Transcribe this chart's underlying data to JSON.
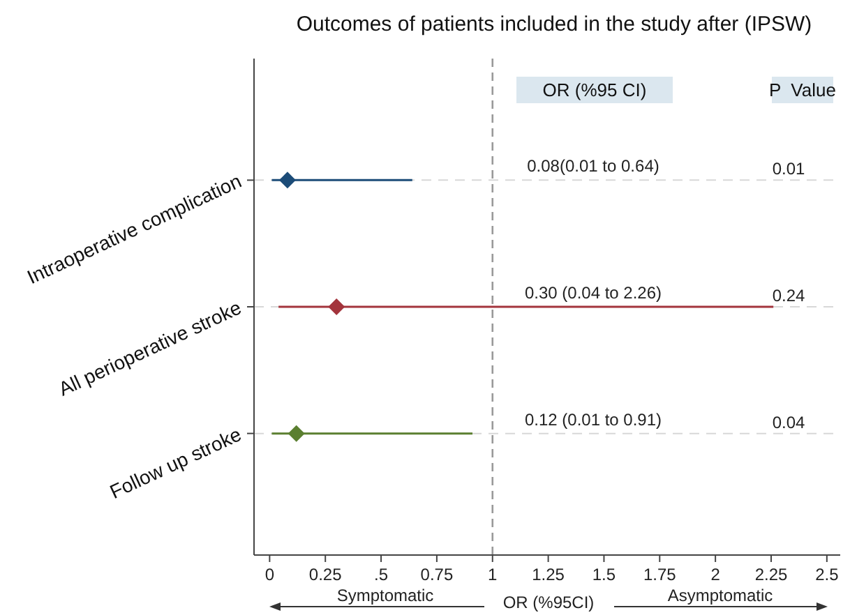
{
  "chart_data": {
    "type": "scatter",
    "orientation": "horizontal",
    "title": "Outcomes of patients included in the study after (IPSW)",
    "xlabel": "OR (%95CI)",
    "categories": [
      "Intraoperative complication",
      "All perioperative stroke",
      "Follow up stroke"
    ],
    "series": [
      {
        "colors": [
          "#1c4c78",
          "#a3343c",
          "#5b7f30"
        ],
        "values": [
          0.08,
          0.3,
          0.12
        ],
        "errors": [
          [
            0.01,
            0.64
          ],
          [
            0.04,
            2.26
          ],
          [
            0.01,
            0.91
          ]
        ]
      }
    ],
    "marker": "diamond",
    "grid": "y",
    "xlim": [
      -0.07,
      2.56
    ],
    "xticks": [
      0,
      0.25,
      {
        "value": 0.5,
        "label": ".5"
      },
      0.75,
      1,
      1.25,
      1.5,
      1.75,
      2,
      2.25,
      2.5
    ],
    "ref_lines": [
      {
        "axis": "x",
        "value": 1,
        "color": "#999999",
        "line_style": "dashed"
      }
    ],
    "annotations": [
      "OR (%95 CI)",
      "P  Value",
      "Symptomatic",
      "Asymptomatic",
      "0.08(0.01 to 0.64)",
      "0.01",
      "0.30 (0.04 to 2.26)",
      "0.24",
      "0.12 (0.01 to 0.91)",
      "0.04"
    ]
  }
}
